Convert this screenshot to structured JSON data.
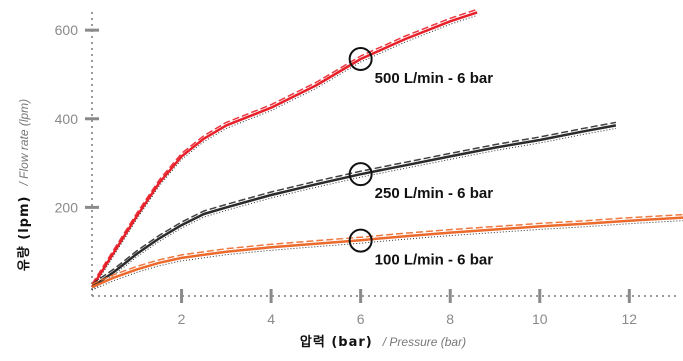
{
  "chart_data": {
    "type": "line",
    "xlabel": {
      "main": "압력 (bar)",
      "sub": "/ Pressure (bar)"
    },
    "ylabel": {
      "main": "유량 (lpm)",
      "sub": "/ Flow rate (lpm)"
    },
    "xlim": [
      0,
      13.4
    ],
    "ylim": [
      0,
      650
    ],
    "xticks": [
      2,
      4,
      6,
      8,
      10,
      12
    ],
    "yticks": [
      200,
      400,
      600
    ],
    "grid": false,
    "series": [
      {
        "name": "500 L/min - 6 bar",
        "color": "#e8202a",
        "x": [
          0,
          0.5,
          1,
          1.5,
          2,
          2.5,
          3,
          3.5,
          4,
          5,
          6,
          7,
          8,
          8.6
        ],
        "y": [
          20,
          100,
          180,
          255,
          315,
          355,
          385,
          405,
          425,
          475,
          535,
          580,
          620,
          640
        ]
      },
      {
        "name": "250 L/min - 6 bar",
        "color": "#2b2b2b",
        "x": [
          0,
          0.5,
          1,
          1.5,
          2,
          2.5,
          3,
          4,
          5,
          6,
          7,
          8,
          9,
          10,
          11,
          11.7
        ],
        "y": [
          20,
          55,
          95,
          130,
          160,
          185,
          200,
          228,
          252,
          275,
          295,
          315,
          335,
          352,
          372,
          385
        ]
      },
      {
        "name": "100 L/min - 6 bar",
        "color": "#ec6a2c",
        "x": [
          0,
          0.5,
          1,
          1.5,
          2,
          2.5,
          3,
          4,
          5,
          6,
          7,
          8,
          9,
          10,
          11,
          12,
          13.4
        ],
        "y": [
          20,
          42,
          60,
          75,
          86,
          93,
          100,
          110,
          118,
          126,
          135,
          143,
          150,
          157,
          163,
          170,
          178
        ]
      }
    ],
    "annotations": [
      {
        "label": "500 L/min - 6 bar",
        "x": 6,
        "y": 535
      },
      {
        "label": "250 L/min - 6 bar",
        "x": 6,
        "y": 275
      },
      {
        "label": "100 L/min - 6 bar",
        "x": 6,
        "y": 125
      }
    ]
  }
}
